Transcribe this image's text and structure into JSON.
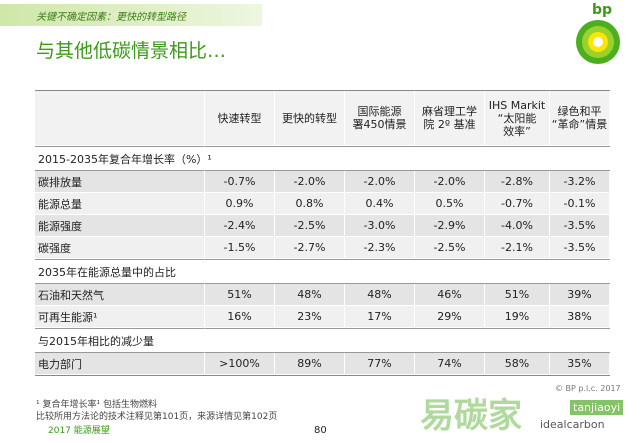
{
  "header_bar": "关键不确定因素：更快的转型路径",
  "title": "与其他低碳情景相比…",
  "logo": "bp",
  "table": {
    "columns": [
      "快速转型",
      "更快的转型",
      "国际能源\n署450情景",
      "麻省理工学\n院 2º 基准",
      "IHS Markit\n“太阳能\n效率”",
      "绿色和平\n“革命”情景"
    ],
    "sections": [
      {
        "title": "2015-2035年复合年增长率（%）¹",
        "rows": [
          {
            "label": "碳排放量",
            "cells": [
              "-0.7%",
              "-2.0%",
              "-2.0%",
              "-2.0%",
              "-2.8%",
              "-3.2%"
            ]
          },
          {
            "label": "能源总量",
            "cells": [
              "0.9%",
              "0.8%",
              "0.4%",
              "0.5%",
              "-0.7%",
              "-0.1%"
            ]
          },
          {
            "label": "能源强度",
            "cells": [
              "-2.4%",
              "-2.5%",
              "-3.0%",
              "-2.9%",
              "-4.0%",
              "-3.5%"
            ]
          },
          {
            "label": "碳强度",
            "cells": [
              "-1.5%",
              "-2.7%",
              "-2.3%",
              "-2.5%",
              "-2.1%",
              "-3.5%"
            ]
          }
        ]
      },
      {
        "title": "2035年在能源总量中的占比",
        "rows": [
          {
            "label": "石油和天然气",
            "cells": [
              "51%",
              "48%",
              "48%",
              "46%",
              "51%",
              "39%"
            ]
          },
          {
            "label": "可再生能源¹",
            "cells": [
              "16%",
              "23%",
              "17%",
              "29%",
              "19%",
              "38%"
            ]
          }
        ]
      },
      {
        "title": "与2015年相比的减少量",
        "rows": [
          {
            "label": "电力部门",
            "cells": [
              ">100%",
              "89%",
              "77%",
              "74%",
              "58%",
              "35%"
            ]
          }
        ]
      }
    ]
  },
  "footnotes": [
    "¹ 复合年增长率¹ 包括生物燃料",
    "比较所用方法论的技术注释见第101页，来源详情见第102页"
  ],
  "footer_left": "2017 能源展望",
  "page_number": "80",
  "copyright": "© BP p.l.c. 2017",
  "watermark": "易碳家",
  "watermark_sub": "tanjiaoyi",
  "watermark_handle": "idealcarbon"
}
